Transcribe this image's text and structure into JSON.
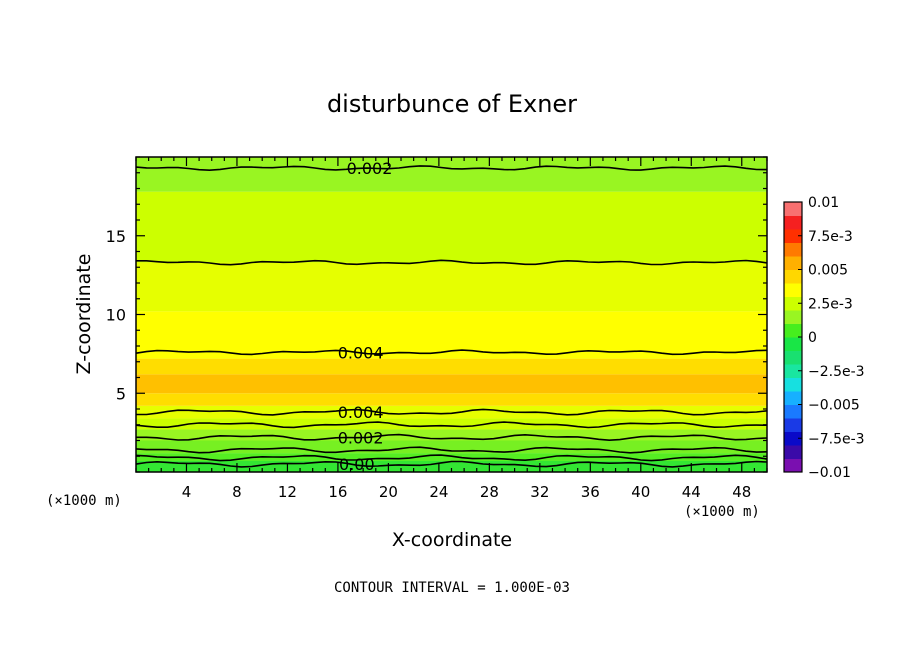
{
  "chart_data": {
    "type": "heatmap",
    "title": "disturbunce of Exner",
    "xlabel": "X-coordinate",
    "ylabel": "Z-coordinate",
    "x_unit_left": "(×1000 m)",
    "x_unit_right": "(×1000 m)",
    "footer": "CONTOUR INTERVAL = 1.000E-03",
    "xlim": [
      0,
      50
    ],
    "ylim": [
      0,
      20
    ],
    "x_ticks": [
      4,
      8,
      12,
      16,
      20,
      24,
      28,
      32,
      36,
      40,
      44,
      48
    ],
    "x_tick_labels": [
      "4",
      "8",
      "12",
      "16",
      "20",
      "24",
      "28",
      "32",
      "36",
      "40",
      "44",
      "48"
    ],
    "y_ticks": [
      5,
      10,
      15
    ],
    "y_tick_labels": [
      "5",
      "10",
      "15"
    ],
    "contour_labels": [
      {
        "text": "0.002",
        "x": 18.5,
        "z": 19.3
      },
      {
        "text": "0.004",
        "x": 17.8,
        "z": 7.6
      },
      {
        "text": "0.004",
        "x": 17.8,
        "z": 3.8
      },
      {
        "text": "0.002",
        "x": 17.8,
        "z": 2.2
      },
      {
        "text": "0.00",
        "x": 17.5,
        "z": 0.5
      }
    ],
    "contour_lines_z": [
      0.5,
      0.9,
      1.4,
      2.2,
      3.0,
      3.8,
      7.6,
      13.3,
      19.3
    ],
    "bands": [
      {
        "z0": 0.0,
        "z1": 0.7,
        "value": 0.0,
        "color": "#33e633"
      },
      {
        "z0": 0.7,
        "z1": 1.2,
        "value": 0.0005,
        "color": "#55ee22"
      },
      {
        "z0": 1.2,
        "z1": 2.0,
        "value": 0.0015,
        "color": "#77f022"
      },
      {
        "z0": 2.0,
        "z1": 2.7,
        "value": 0.0025,
        "color": "#99f522"
      },
      {
        "z0": 2.7,
        "z1": 3.4,
        "value": 0.003,
        "color": "#ccff00"
      },
      {
        "z0": 3.4,
        "z1": 4.2,
        "value": 0.0035,
        "color": "#e6ff00"
      },
      {
        "z0": 4.2,
        "z1": 5.0,
        "value": 0.0045,
        "color": "#ffdd00"
      },
      {
        "z0": 5.0,
        "z1": 6.2,
        "value": 0.005,
        "color": "#ffc000"
      },
      {
        "z0": 6.2,
        "z1": 7.2,
        "value": 0.0045,
        "color": "#ffdd00"
      },
      {
        "z0": 7.2,
        "z1": 10.2,
        "value": 0.004,
        "color": "#ffff00"
      },
      {
        "z0": 10.2,
        "z1": 13.3,
        "value": 0.0035,
        "color": "#e6ff00"
      },
      {
        "z0": 13.3,
        "z1": 17.8,
        "value": 0.0025,
        "color": "#ccff00"
      },
      {
        "z0": 17.8,
        "z1": 20.0,
        "value": 0.002,
        "color": "#99f522"
      }
    ],
    "colorbar": {
      "min": -0.01,
      "max": 0.01,
      "tick_labels": [
        "0.01",
        "7.5e-3",
        "0.005",
        "2.5e-3",
        "0",
        "−2.5e-3",
        "−0.005",
        "−7.5e-3",
        "−0.01"
      ],
      "tick_values": [
        0.01,
        0.0075,
        0.005,
        0.0025,
        0,
        -0.0025,
        -0.005,
        -0.0075,
        -0.01
      ],
      "colors": [
        "#7a0fb0",
        "#3a0aa8",
        "#0a0ac8",
        "#1a3ae6",
        "#1a7aff",
        "#17b0ff",
        "#17e0e0",
        "#19e6a0",
        "#19e070",
        "#19e646",
        "#46ee1e",
        "#99f522",
        "#ccff00",
        "#ffff00",
        "#ffd700",
        "#ffb000",
        "#ff7a00",
        "#ff3000",
        "#f52020",
        "#f87070"
      ]
    }
  }
}
